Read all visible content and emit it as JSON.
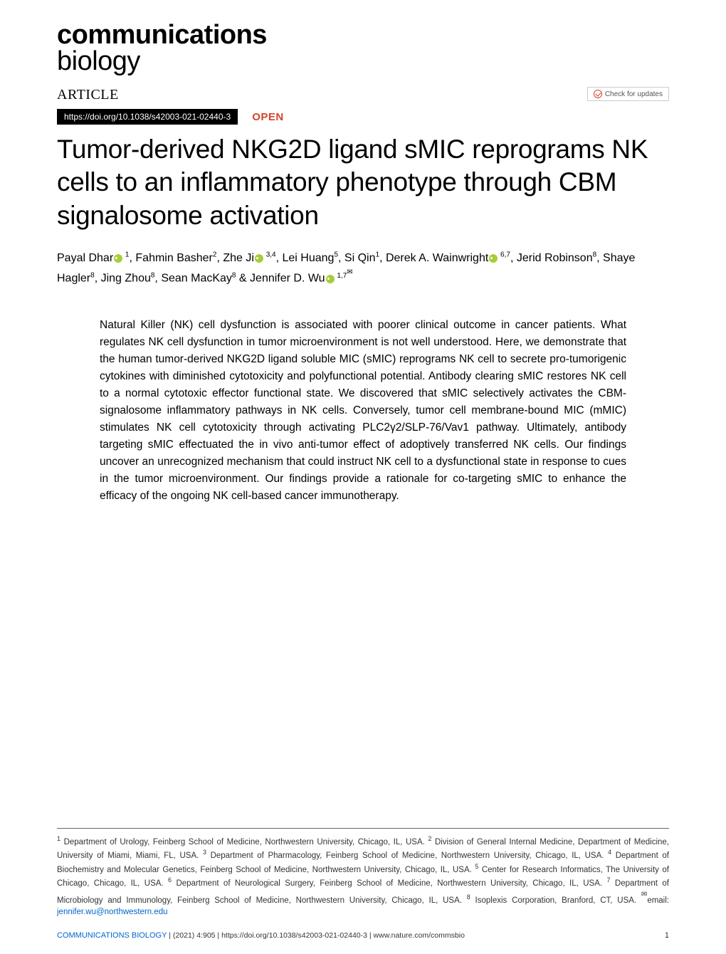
{
  "journal": {
    "name_line1": "communications",
    "name_line2": "biology"
  },
  "header": {
    "article_label": "ARTICLE",
    "check_updates_label": "Check for updates",
    "doi": "https://doi.org/10.1038/s42003-021-02440-3",
    "open_label": "OPEN"
  },
  "title": "Tumor-derived NKG2D ligand sMIC reprograms NK cells to an inflammatory phenotype through CBM signalosome activation",
  "authors": [
    {
      "name": "Payal Dhar",
      "orcid": true,
      "affil": " 1"
    },
    {
      "name": "Fahmin Basher",
      "orcid": false,
      "affil": "2"
    },
    {
      "name": "Zhe Ji",
      "orcid": true,
      "affil": " 3,4"
    },
    {
      "name": "Lei Huang",
      "orcid": false,
      "affil": "5"
    },
    {
      "name": "Si Qin",
      "orcid": false,
      "affil": "1"
    },
    {
      "name": "Derek A. Wainwright",
      "orcid": true,
      "affil": " 6,7"
    },
    {
      "name": "Jerid Robinson",
      "orcid": false,
      "affil": "8"
    },
    {
      "name": "Shaye Hagler",
      "orcid": false,
      "affil": "8"
    },
    {
      "name": "Jing Zhou",
      "orcid": false,
      "affil": "8"
    },
    {
      "name": "Sean MacKay",
      "orcid": false,
      "affil": "8"
    },
    {
      "name": "Jennifer D. Wu",
      "orcid": true,
      "affil": " 1,7",
      "corresponding": true
    }
  ],
  "abstract": "Natural Killer (NK) cell dysfunction is associated with poorer clinical outcome in cancer patients. What regulates NK cell dysfunction in tumor microenvironment is not well understood. Here, we demonstrate that the human tumor-derived NKG2D ligand soluble MIC (sMIC) reprograms NK cell to secrete pro-tumorigenic cytokines with diminished cytotoxicity and polyfunctional potential. Antibody clearing sMIC restores NK cell to a normal cytotoxic effector functional state. We discovered that sMIC selectively activates the CBM-signalosome inflammatory pathways in NK cells. Conversely, tumor cell membrane-bound MIC (mMIC) stimulates NK cell cytotoxicity through activating PLC2γ2/SLP-76/Vav1 pathway. Ultimately, antibody targeting sMIC effectuated the in vivo anti-tumor effect of adoptively transferred NK cells. Our findings uncover an unrecognized mechanism that could instruct NK cell to a dysfunctional state in response to cues in the tumor microenvironment. Our findings provide a rationale for co-targeting sMIC to enhance the efficacy of the ongoing NK cell-based cancer immunotherapy.",
  "affiliations_text_parts": [
    {
      "sup": "1",
      "text": " Department of Urology, Feinberg School of Medicine, Northwestern University, Chicago, IL, USA. "
    },
    {
      "sup": "2",
      "text": " Division of General Internal Medicine, Department of Medicine, University of Miami, Miami, FL, USA. "
    },
    {
      "sup": "3",
      "text": " Department of Pharmacology, Feinberg School of Medicine, Northwestern University, Chicago, IL, USA. "
    },
    {
      "sup": "4",
      "text": " Department of Biochemistry and Molecular Genetics, Feinberg School of Medicine, Northwestern University, Chicago, IL, USA. "
    },
    {
      "sup": "5",
      "text": " Center for Research Informatics, The University of Chicago, Chicago, IL, USA. "
    },
    {
      "sup": "6",
      "text": " Department of Neurological Surgery, Feinberg School of Medicine, Northwestern University, Chicago, IL, USA. "
    },
    {
      "sup": "7",
      "text": " Department of Microbiology and Immunology, Feinberg School of Medicine, Northwestern University, Chicago, IL, USA. "
    },
    {
      "sup": "8",
      "text": " Isoplexis Corporation, Branford, CT, USA. "
    }
  ],
  "email_label": "email: ",
  "email": "jennifer.wu@northwestern.edu",
  "footer": {
    "journal_label": "COMMUNICATIONS BIOLOGY",
    "separator": " | ",
    "citation": "       (2021) 4:905 ",
    "doi_url": " | https://doi.org/10.1038/s42003-021-02440-3 | www.nature.com/commsbio",
    "page": "1"
  },
  "colors": {
    "open_access": "#d4442a",
    "link": "#0066cc",
    "orcid": "#a6ce39",
    "text": "#000000",
    "footer_text": "#333333",
    "border": "#666666"
  },
  "fonts": {
    "body": "Arial, Helvetica, sans-serif",
    "article_label": "Georgia, Times New Roman, serif",
    "title_size": 37,
    "author_size": 16,
    "abstract_size": 15.5,
    "affil_size": 11.5
  }
}
